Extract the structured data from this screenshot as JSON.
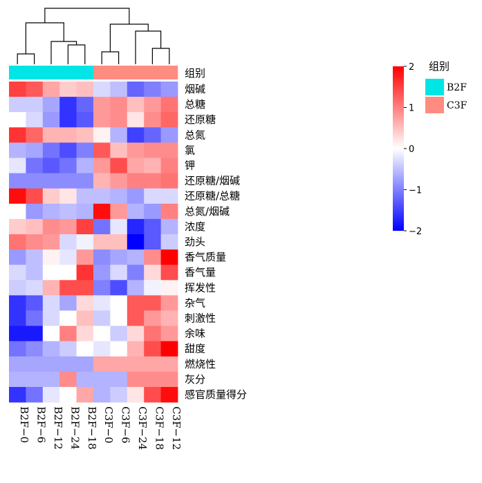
{
  "chart_data": {
    "type": "heatmap",
    "columns": [
      "B2F-0",
      "B2F-6",
      "B2F-12",
      "B2F-24",
      "B2F-18",
      "C3F-0",
      "C3F-6",
      "C3F-24",
      "C3F-18",
      "C3F-12"
    ],
    "column_groups": [
      "B2F",
      "B2F",
      "B2F",
      "B2F",
      "B2F",
      "C3F",
      "C3F",
      "C3F",
      "C3F",
      "C3F"
    ],
    "group_row_label": "组别",
    "rows": [
      {
        "name": "烟碱",
        "values": [
          1.5,
          1.3,
          0.7,
          0.4,
          0.5,
          -0.3,
          -0.5,
          -1.2,
          -1.0,
          -0.8
        ]
      },
      {
        "name": "总糖",
        "values": [
          -0.4,
          -0.4,
          -0.7,
          -1.6,
          -1.2,
          0.8,
          0.9,
          0.5,
          0.8,
          1.1
        ]
      },
      {
        "name": "还原糖",
        "values": [
          0.0,
          -0.3,
          -0.8,
          -1.6,
          -1.3,
          0.8,
          0.9,
          0.2,
          0.9,
          1.2
        ]
      },
      {
        "name": "总氮",
        "values": [
          1.6,
          1.2,
          0.6,
          0.6,
          0.5,
          0.1,
          -0.6,
          -1.5,
          -1.2,
          -0.8
        ]
      },
      {
        "name": "氯",
        "values": [
          -0.6,
          -0.7,
          -1.1,
          -1.4,
          -1.0,
          1.3,
          0.5,
          0.8,
          0.9,
          0.9
        ]
      },
      {
        "name": "钾",
        "values": [
          -0.2,
          -1.1,
          -1.3,
          -1.1,
          -0.6,
          0.8,
          1.4,
          0.7,
          0.6,
          1.0
        ]
      },
      {
        "name": "还原糖/烟碱",
        "values": [
          -0.9,
          -0.9,
          -0.9,
          -0.9,
          -0.9,
          0.6,
          0.8,
          1.0,
          1.0,
          1.1
        ]
      },
      {
        "name": "还原糖/总糖",
        "values": [
          1.9,
          1.4,
          0.4,
          0.2,
          -0.5,
          -0.5,
          -0.6,
          -0.8,
          -0.3,
          -0.3
        ]
      },
      {
        "name": "总氮/烟碱",
        "values": [
          0.0,
          -0.8,
          -0.6,
          -0.5,
          -0.6,
          1.9,
          0.8,
          -0.6,
          -0.8,
          1.0
        ]
      },
      {
        "name": "浓度",
        "values": [
          0.4,
          0.5,
          0.9,
          0.8,
          1.5,
          -1.1,
          -0.2,
          -1.7,
          -1.3,
          -0.6
        ]
      },
      {
        "name": "劲头",
        "values": [
          1.1,
          0.9,
          0.8,
          -0.3,
          -0.1,
          0.5,
          0.5,
          -2.0,
          -1.3,
          -0.4
        ]
      },
      {
        "name": "香气质量",
        "values": [
          -0.8,
          -0.5,
          0.1,
          -0.2,
          0.8,
          -0.9,
          -0.7,
          -0.6,
          0.9,
          2.0
        ]
      },
      {
        "name": "香气量",
        "values": [
          -0.3,
          -0.5,
          0.0,
          0.0,
          1.6,
          -0.8,
          -0.3,
          -1.0,
          0.3,
          1.4
        ]
      },
      {
        "name": "挥发性",
        "values": [
          -0.4,
          -0.3,
          0.6,
          1.4,
          1.4,
          -1.0,
          -1.4,
          -0.6,
          -0.1,
          0.1
        ]
      },
      {
        "name": "杂气",
        "values": [
          -1.6,
          -1.3,
          -0.3,
          -0.7,
          0.3,
          -0.2,
          0.0,
          1.3,
          1.3,
          0.8
        ]
      },
      {
        "name": "刺激性",
        "values": [
          -1.6,
          -1.1,
          -0.3,
          0.0,
          0.5,
          -0.4,
          0.0,
          1.3,
          0.8,
          0.6
        ]
      },
      {
        "name": "余味",
        "values": [
          -1.8,
          -1.8,
          0.0,
          1.0,
          0.3,
          0.0,
          -0.4,
          0.3,
          1.1,
          0.8
        ]
      },
      {
        "name": "甜度",
        "values": [
          -1.1,
          -0.9,
          -0.6,
          -0.4,
          0.0,
          -0.2,
          0.0,
          0.6,
          1.4,
          2.0
        ]
      },
      {
        "name": "燃烧性",
        "values": [
          -0.7,
          -0.7,
          -0.7,
          -0.7,
          -0.7,
          0.7,
          0.7,
          0.7,
          0.7,
          0.7
        ]
      },
      {
        "name": "灰分",
        "values": [
          -0.6,
          -0.6,
          -0.6,
          0.9,
          -0.6,
          -0.6,
          -0.6,
          0.9,
          0.9,
          0.9
        ]
      },
      {
        "name": "感官质量得分",
        "values": [
          -1.6,
          -1.1,
          -0.2,
          0.0,
          0.7,
          -0.6,
          -0.4,
          0.2,
          1.4,
          1.9
        ]
      }
    ],
    "color_scale": {
      "min": -2,
      "max": 2,
      "ticks": [
        "2",
        "1",
        "0",
        "-1",
        "-2"
      ],
      "low_color": "#0000ff",
      "mid_color": "#ffffff",
      "high_color": "#ff0000"
    },
    "group_legend": {
      "title": "组别",
      "items": [
        {
          "name": "B2F",
          "color": "#00e5e5"
        },
        {
          "name": "C3F",
          "color": "#ff8c80"
        }
      ]
    },
    "dendrogram": true
  }
}
